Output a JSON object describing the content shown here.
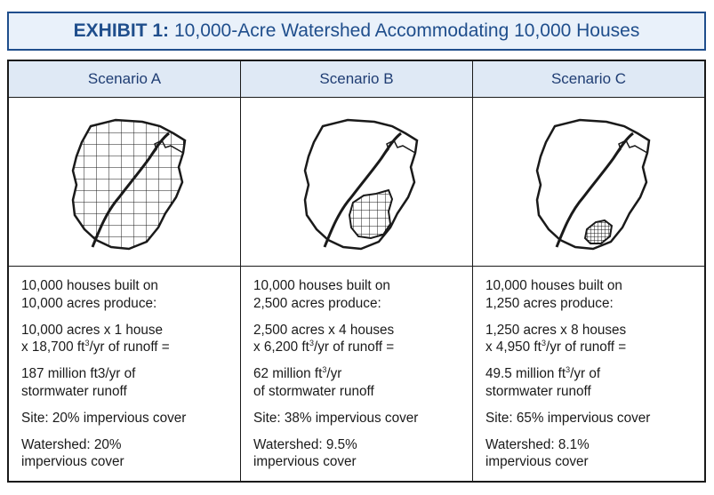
{
  "exhibit": {
    "prefix": "EXHIBIT 1:",
    "title": "10,000-Acre Watershed Accommodating 10,000 Houses"
  },
  "scenarios": [
    {
      "heading": "Scenario A",
      "line1": "10,000 houses built on\n10,000 acres produce:",
      "line2a": "10,000 acres x 1 house\nx 18,700 ft",
      "line2b": "/yr of runoff =",
      "line3": "187 million ft3/yr of\nstormwater runoff",
      "line4": "Site: 20% impervious cover",
      "line5": "Watershed: 20%\nimpervious cover"
    },
    {
      "heading": "Scenario B",
      "line1": "10,000 houses built on\n2,500 acres produce:",
      "line2a": "2,500 acres x 4 houses\nx 6,200 ft",
      "line2b": "/yr of runoff =",
      "line3a": "62 million ft",
      "line3b": "/yr\nof stormwater runoff",
      "line4": "Site: 38% impervious cover",
      "line5": "Watershed: 9.5%\nimpervious cover"
    },
    {
      "heading": "Scenario C",
      "line1": "10,000 houses built on\n1,250 acres produce:",
      "line2a": "1,250 acres x 8 houses\nx 4,950 ft",
      "line2b": "/yr of runoff =",
      "line3a": "49.5 million ft",
      "line3b": "/yr of\nstormwater runoff",
      "line4": "Site: 65% impervious cover",
      "line5": "Watershed: 8.1%\nimpervious cover"
    }
  ],
  "superscript": "3",
  "colors": {
    "accent": "#1f4e8c",
    "header_bg": "#dfe9f5",
    "line": "#1a1a1a"
  }
}
